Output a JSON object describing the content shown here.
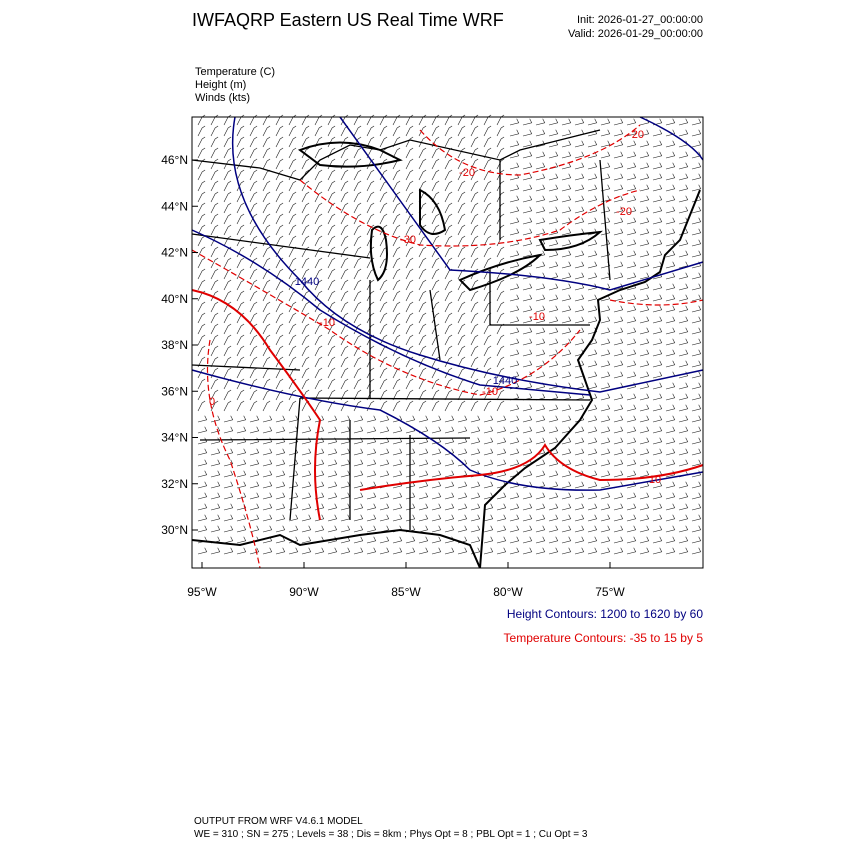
{
  "header": {
    "title": "IWFAQRP Eastern US Real Time WRF",
    "init": "Init: 2026-01-27_00:00:00",
    "valid": "Valid: 2026-01-29_00:00:00"
  },
  "fields": [
    "Temperature   (C)",
    "Height   (m)",
    "Winds   (kts)"
  ],
  "lat_labels": [
    "46°N",
    "44°N",
    "42°N",
    "40°N",
    "38°N",
    "36°N",
    "34°N",
    "32°N",
    "30°N"
  ],
  "lon_labels": [
    "95°W",
    "90°W",
    "85°W",
    "80°W",
    "75°W"
  ],
  "contour_labels": [
    "-20",
    "-20",
    "-20",
    "-30",
    "1440",
    "-10",
    "-10",
    "1440",
    "-10",
    "0",
    "10"
  ],
  "legend": {
    "height": "Height Contours: 1200 to 1620 by 60",
    "temperature": "Temperature Contours: -35 to 15 by 5"
  },
  "footer": {
    "line1": "OUTPUT FROM WRF V4.6.1 MODEL",
    "line2": "WE = 310 ; SN = 275 ; Levels = 38 ; Dis = 8km ; Phys Opt = 8 ; PBL Opt = 1 ; Cu Opt = 3"
  }
}
